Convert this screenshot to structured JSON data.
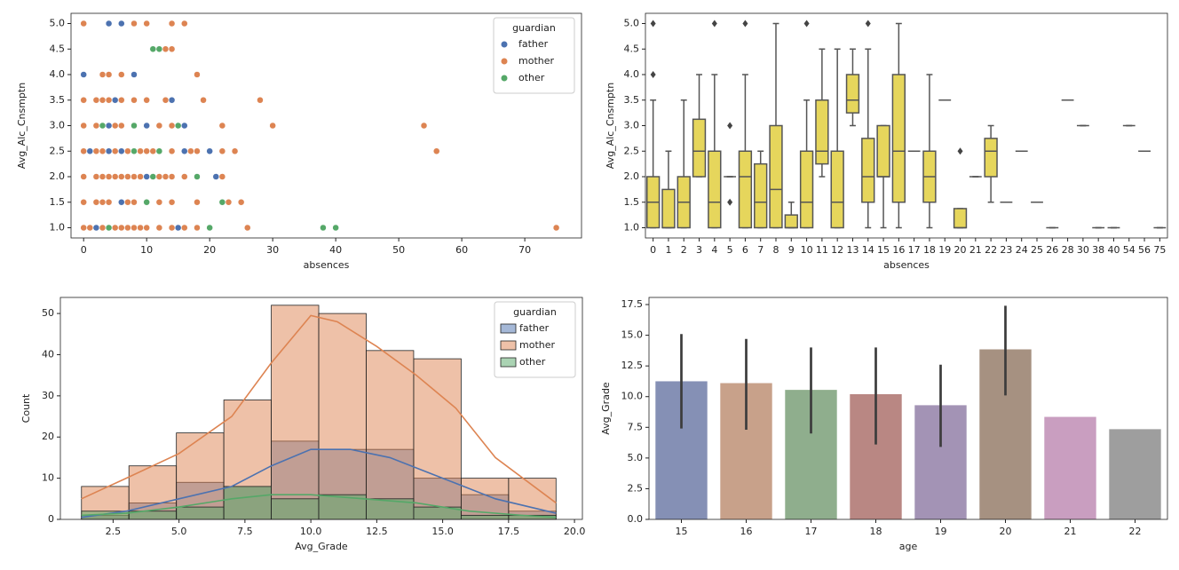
{
  "chart_data": [
    {
      "type": "scatter",
      "xlabel": "absences",
      "ylabel": "Avg_Alc_Cnsmptn",
      "xlim": [
        -2,
        79
      ],
      "ylim": [
        0.8,
        5.2
      ],
      "xticks": [
        0,
        10,
        20,
        30,
        40,
        50,
        60,
        70
      ],
      "yticks": [
        {
          "value": 1,
          "label": "1.0"
        },
        1.5,
        {
          "value": 2,
          "label": "2.0"
        },
        2.5,
        {
          "value": 3,
          "label": "3.0"
        },
        3.5,
        {
          "value": 4,
          "label": "4.0"
        },
        4.5,
        {
          "value": 5,
          "label": "5.0"
        }
      ],
      "legend_title": "guardian",
      "legend": "upper right",
      "series": [
        {
          "name": "father",
          "color": "#4c72b0",
          "x": [
            4,
            6,
            0,
            8,
            5,
            14,
            4,
            10,
            16,
            1,
            4,
            6,
            16,
            20,
            10,
            21,
            4,
            6,
            2,
            15
          ],
          "values": [
            5,
            5,
            4,
            4,
            3.5,
            3.5,
            3,
            3,
            3,
            2.5,
            2.5,
            2.5,
            2.5,
            2.5,
            2,
            2,
            1.5,
            1.5,
            1,
            1
          ]
        },
        {
          "name": "mother",
          "color": "#dd8452",
          "x": [
            0,
            8,
            10,
            14,
            16,
            13,
            14,
            3,
            4,
            6,
            18,
            0,
            2,
            3,
            4,
            6,
            8,
            10,
            13,
            19,
            28,
            0,
            2,
            5,
            6,
            8,
            12,
            14,
            22,
            30,
            54,
            0,
            2,
            3,
            5,
            7,
            9,
            10,
            11,
            12,
            14,
            17,
            18,
            22,
            24,
            56,
            0,
            2,
            3,
            4,
            5,
            6,
            7,
            8,
            9,
            11,
            12,
            13,
            14,
            16,
            22,
            0,
            2,
            3,
            4,
            7,
            8,
            12,
            14,
            18,
            23,
            25,
            0,
            1,
            3,
            5,
            6,
            7,
            8,
            9,
            10,
            12,
            14,
            16,
            18,
            26,
            75
          ],
          "values": [
            5,
            5,
            5,
            5,
            5,
            4.5,
            4.5,
            4,
            4,
            4,
            4,
            3.5,
            3.5,
            3.5,
            3.5,
            3.5,
            3.5,
            3.5,
            3.5,
            3.5,
            3.5,
            3,
            3,
            3,
            3,
            3,
            3,
            3,
            3,
            3,
            3,
            2.5,
            2.5,
            2.5,
            2.5,
            2.5,
            2.5,
            2.5,
            2.5,
            2.5,
            2.5,
            2.5,
            2.5,
            2.5,
            2.5,
            2.5,
            2,
            2,
            2,
            2,
            2,
            2,
            2,
            2,
            2,
            2,
            2,
            2,
            2,
            2,
            2,
            1.5,
            1.5,
            1.5,
            1.5,
            1.5,
            1.5,
            1.5,
            1.5,
            1.5,
            1.5,
            1.5,
            1,
            1,
            1,
            1,
            1,
            1,
            1,
            1,
            1,
            1,
            1,
            1,
            1,
            1,
            1
          ]
        },
        {
          "name": "other",
          "color": "#55a868",
          "x": [
            11,
            12,
            3,
            8,
            15,
            8,
            12,
            11,
            18,
            10,
            22,
            4,
            20,
            38,
            40
          ],
          "values": [
            4.5,
            4.5,
            3,
            3,
            3,
            2.5,
            2.5,
            2,
            2,
            1.5,
            1.5,
            1,
            1,
            1,
            1
          ]
        }
      ]
    },
    {
      "type": "box",
      "xlabel": "absences",
      "ylabel": "Avg_Alc_Cnsmptn",
      "color": "#e6d65c",
      "ylim": [
        0.8,
        5.2
      ],
      "yticks": [
        {
          "value": 1,
          "label": "1.0"
        },
        1.5,
        {
          "value": 2,
          "label": "2.0"
        },
        2.5,
        {
          "value": 3,
          "label": "3.0"
        },
        3.5,
        {
          "value": 4,
          "label": "4.0"
        },
        4.5,
        {
          "value": 5,
          "label": "5.0"
        }
      ],
      "categories": [
        "0",
        "1",
        "2",
        "3",
        "4",
        "5",
        "6",
        "7",
        "8",
        "9",
        "10",
        "11",
        "12",
        "13",
        "14",
        "15",
        "16",
        "17",
        "18",
        "19",
        "20",
        "21",
        "22",
        "23",
        "24",
        "25",
        "26",
        "28",
        "30",
        "38",
        "40",
        "54",
        "56",
        "75"
      ],
      "min": [
        1,
        1,
        1,
        2,
        1,
        2,
        1,
        1,
        1,
        1,
        1,
        2,
        1,
        3,
        1,
        1,
        1,
        2.5,
        1,
        3.5,
        1,
        2,
        1.5,
        1.5,
        2.5,
        1.5,
        1,
        3.5,
        3,
        1,
        1,
        3,
        2.5,
        1
      ],
      "q1": [
        1,
        1,
        1,
        2,
        1,
        2,
        1,
        1,
        1,
        1,
        1,
        2.25,
        1,
        3.25,
        1.5,
        2,
        1.5,
        2.5,
        1.5,
        3.5,
        1,
        2,
        2,
        1.5,
        2.5,
        1.5,
        1,
        3.5,
        3,
        1,
        1,
        3,
        2.5,
        1
      ],
      "median": [
        1.5,
        1,
        1.5,
        2.5,
        1.5,
        2,
        2,
        1.5,
        1.75,
        1,
        1.5,
        2.5,
        1.5,
        3.5,
        2,
        2,
        2.5,
        2.5,
        2,
        3.5,
        1,
        2,
        2.5,
        1.5,
        2.5,
        1.5,
        1,
        3.5,
        3,
        1,
        1,
        3,
        2.5,
        1
      ],
      "q3": [
        2,
        1.75,
        2,
        3.125,
        2.5,
        2,
        2.5,
        2.25,
        3,
        1.25,
        2.5,
        3.5,
        2.5,
        4,
        2.75,
        3,
        4,
        2.5,
        2.5,
        3.5,
        1.375,
        2,
        2.75,
        1.5,
        2.5,
        1.5,
        1,
        3.5,
        3,
        1,
        1,
        3,
        2.5,
        1
      ],
      "max": [
        3.5,
        2.5,
        3.5,
        4,
        4,
        2,
        4,
        2.5,
        5,
        1.5,
        3.5,
        4.5,
        4.5,
        4.5,
        4.5,
        3,
        5,
        2.5,
        4,
        3.5,
        1.375,
        2,
        3,
        1.5,
        2.5,
        1.5,
        1,
        3.5,
        3,
        1,
        1,
        3,
        2.5,
        1
      ],
      "fliers": [
        [
          4,
          5
        ],
        [],
        [],
        [],
        [
          5
        ],
        [
          1.5,
          3
        ],
        [
          5
        ],
        [],
        [],
        [],
        [
          5
        ],
        [],
        [],
        [],
        [
          5
        ],
        [],
        [],
        [],
        [],
        [],
        [
          2.5
        ],
        [],
        [],
        [],
        [],
        [],
        [],
        [],
        [],
        [],
        [],
        [],
        [],
        []
      ]
    },
    {
      "type": "histogram",
      "xlabel": "Avg_Grade",
      "ylabel": "Count",
      "xlim": [
        0.5,
        20.3
      ],
      "ylim": [
        0,
        53.9
      ],
      "xticks": [
        2.5,
        {
          "value": 5,
          "label": "5.0"
        },
        7.5,
        {
          "value": 10,
          "label": "10.0"
        },
        12.5,
        {
          "value": 15,
          "label": "15.0"
        },
        17.5,
        {
          "value": 20,
          "label": "20.0"
        }
      ],
      "yticks": [
        0,
        10,
        20,
        30,
        40,
        50
      ],
      "legend_title": "guardian",
      "legend": "upper right",
      "bins": [
        1.3,
        3.1,
        4.9,
        6.7,
        8.5,
        10.3,
        12.1,
        13.9,
        15.7,
        17.5,
        19.3
      ],
      "series": [
        {
          "name": "father",
          "color": "#4c72b0",
          "values": [
            1,
            4,
            9,
            8,
            19,
            17,
            17,
            10,
            6,
            2
          ],
          "kde_x": [
            1.3,
            3,
            5,
            7,
            8.5,
            10,
            11.5,
            13,
            15,
            17,
            19.3
          ],
          "kde_values": [
            0.5,
            2,
            5,
            8,
            13,
            17,
            17,
            15,
            10,
            5,
            1.5
          ]
        },
        {
          "name": "mother",
          "color": "#dd8452",
          "values": [
            8,
            13,
            21,
            29,
            52,
            50,
            41,
            39,
            10,
            10
          ],
          "kde_x": [
            1.3,
            3,
            5,
            7,
            8.5,
            10,
            11,
            12.5,
            14,
            15.5,
            17,
            19.3
          ],
          "kde_values": [
            5,
            10,
            16,
            25,
            38,
            49.5,
            48,
            42,
            35,
            27,
            15,
            4
          ]
        },
        {
          "name": "other",
          "color": "#55a868",
          "values": [
            2,
            2,
            3,
            8,
            5,
            6,
            5,
            3,
            1,
            1
          ],
          "kde_x": [
            1.3,
            3,
            5,
            7,
            8.5,
            10,
            12,
            14,
            16,
            18,
            19.3
          ],
          "kde_values": [
            1,
            1.5,
            3,
            5,
            6,
            6,
            5,
            4,
            2,
            1,
            0.5
          ]
        }
      ]
    },
    {
      "type": "bar",
      "xlabel": "age",
      "ylabel": "Avg_Grade",
      "ylim": [
        0,
        18.08
      ],
      "yticks": [
        {
          "value": 0,
          "label": "0.0"
        },
        2.5,
        {
          "value": 5,
          "label": "5.0"
        },
        7.5,
        {
          "value": 10,
          "label": "10.0"
        },
        12.5,
        {
          "value": 15,
          "label": "15.0"
        },
        17.5
      ],
      "categories": [
        "15",
        "16",
        "17",
        "18",
        "19",
        "20",
        "21",
        "22"
      ],
      "values": [
        11.25,
        11.1,
        10.55,
        10.2,
        9.3,
        13.85,
        8.35,
        7.35
      ],
      "ci_low": [
        7.4,
        7.3,
        7.0,
        6.1,
        5.9,
        10.1,
        null,
        null
      ],
      "ci_high": [
        15.1,
        14.7,
        14.0,
        14.0,
        12.6,
        17.4,
        null,
        null
      ],
      "colors": [
        "#8590b5",
        "#c8a18a",
        "#8fae8d",
        "#b98783",
        "#a393b5",
        "#a69181",
        "#c99ec0",
        "#9e9e9e"
      ]
    }
  ]
}
